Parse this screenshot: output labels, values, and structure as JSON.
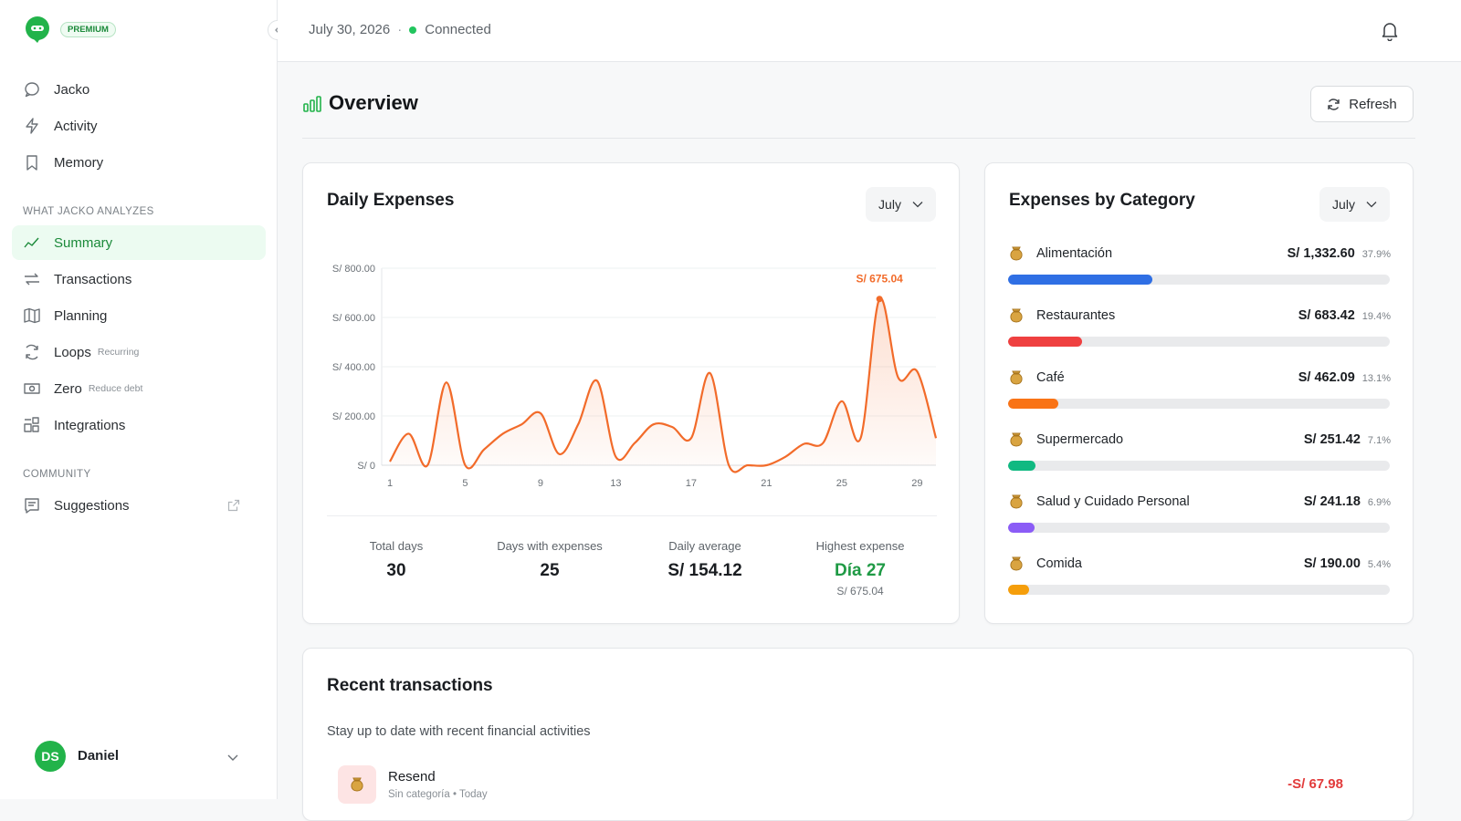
{
  "sidebar": {
    "badge": "PREMIUM",
    "main": [
      {
        "label": "Jacko"
      },
      {
        "label": "Activity"
      },
      {
        "label": "Memory"
      }
    ],
    "sections": [
      {
        "title": "WHAT JACKO ANALYZES",
        "items": [
          {
            "label": "Summary",
            "active": true
          },
          {
            "label": "Transactions"
          },
          {
            "label": "Planning"
          },
          {
            "label": "Loops",
            "tag": "Recurring"
          },
          {
            "label": "Zero",
            "tag": "Reduce debt"
          },
          {
            "label": "Integrations"
          }
        ]
      },
      {
        "title": "COMMUNITY",
        "items": [
          {
            "label": "Suggestions",
            "external": true
          }
        ]
      }
    ],
    "user": {
      "initials": "DS",
      "name": "Daniel"
    }
  },
  "header": {
    "date": "July 30, 2026",
    "status": "Connected"
  },
  "overview": {
    "title": "Overview",
    "refresh": "Refresh"
  },
  "daily": {
    "title": "Daily Expenses",
    "period": "July",
    "stats": [
      {
        "label": "Total days",
        "value": "30"
      },
      {
        "label": "Days with expenses",
        "value": "25"
      },
      {
        "label": "Daily average",
        "value": "S/ 154.12"
      },
      {
        "label": "Highest expense",
        "value": "Día 27",
        "sub": "S/ 675.04"
      }
    ]
  },
  "chart_data": {
    "type": "line",
    "x": [
      1,
      2,
      3,
      4,
      5,
      6,
      7,
      8,
      9,
      10,
      11,
      12,
      13,
      14,
      15,
      16,
      17,
      18,
      19,
      20,
      21,
      22,
      23,
      24,
      25,
      26,
      27,
      28,
      29,
      30
    ],
    "values": [
      15,
      128,
      0,
      336,
      0,
      64,
      128,
      166,
      211,
      45,
      166,
      343,
      34,
      90,
      166,
      155,
      110,
      374,
      0,
      0,
      0,
      34,
      87,
      90,
      260,
      110,
      675.04,
      355,
      381,
      110
    ],
    "value_labels": [
      null,
      null,
      null,
      null,
      null,
      null,
      null,
      null,
      null,
      null,
      null,
      null,
      null,
      null,
      null,
      null,
      null,
      null,
      null,
      null,
      null,
      null,
      null,
      null,
      null,
      null,
      "S/ 675.04",
      null,
      null,
      null
    ],
    "color": "#f26b2a",
    "xlim": [
      1,
      30
    ],
    "xticks": [
      1,
      5,
      9,
      13,
      17,
      21,
      25,
      29
    ],
    "ylim": [
      0,
      800
    ],
    "yticks": [
      {
        "value": 0,
        "label": "S/ 0"
      },
      {
        "value": 200,
        "label": "S/ 200.00"
      },
      {
        "value": 400,
        "label": "S/ 400.00"
      },
      {
        "value": 600,
        "label": "S/ 600.00"
      },
      {
        "value": 800,
        "label": "S/ 800.00"
      }
    ],
    "grid": true
  },
  "categories": {
    "title": "Expenses by Category",
    "period": "July",
    "items": [
      {
        "name": "Alimentación",
        "amount": "S/ 1,332.60",
        "share": 37.9,
        "share_label": "37.9%",
        "color": "#2f6fe4"
      },
      {
        "name": "Restaurantes",
        "amount": "S/ 683.42",
        "share": 19.4,
        "share_label": "19.4%",
        "color": "#ef4040"
      },
      {
        "name": "Café",
        "amount": "S/ 462.09",
        "share": 13.1,
        "share_label": "13.1%",
        "color": "#f97316"
      },
      {
        "name": "Supermercado",
        "amount": "S/ 251.42",
        "share": 7.1,
        "share_label": "7.1%",
        "color": "#10b981"
      },
      {
        "name": "Salud y Cuidado Personal",
        "amount": "S/ 241.18",
        "share": 6.9,
        "share_label": "6.9%",
        "color": "#8b5cf6"
      },
      {
        "name": "Comida",
        "amount": "S/ 190.00",
        "share": 5.4,
        "share_label": "5.4%",
        "color": "#f59e0b"
      }
    ]
  },
  "recent": {
    "title": "Recent transactions",
    "subtitle": "Stay up to date with recent financial activities",
    "rows": [
      {
        "name": "Resend",
        "meta": "Sin categoría • Today",
        "amount": "-S/ 67.98"
      }
    ]
  }
}
